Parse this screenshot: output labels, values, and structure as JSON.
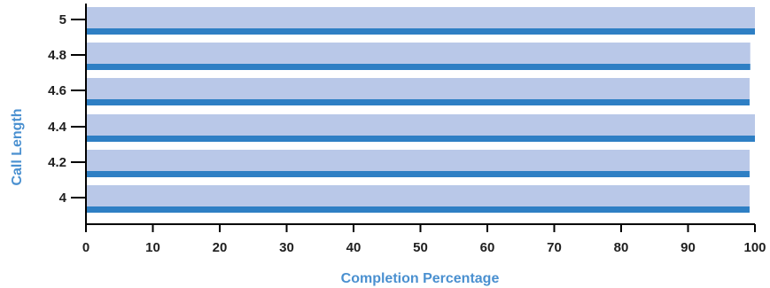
{
  "chart_data": {
    "type": "bar",
    "orientation": "horizontal",
    "xlabel": "Completion Percentage",
    "ylabel": "Call Length",
    "xlim": [
      0,
      100
    ],
    "x_ticks": [
      0,
      10,
      20,
      30,
      40,
      50,
      60,
      70,
      80,
      90,
      100
    ],
    "y_ticks": [
      "4",
      "4.2",
      "4.4",
      "4.6",
      "4.8",
      "5"
    ],
    "categories": [
      4,
      4.2,
      4.4,
      4.6,
      4.8,
      5
    ],
    "series": [
      {
        "values": [
          99.2,
          99.2,
          100,
          99.2,
          99.3,
          100
        ],
        "color": "#b9c8e8"
      },
      {
        "values": [
          99.2,
          99.2,
          100,
          99.2,
          99.3,
          100
        ],
        "color": "#2e7fc4"
      }
    ],
    "axis_title_color": "#4a90d0",
    "grid": false
  }
}
